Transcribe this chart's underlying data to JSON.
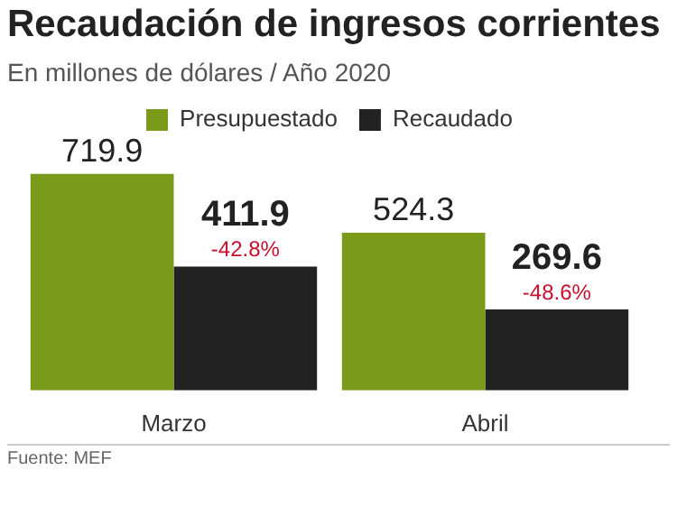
{
  "chart_data": {
    "type": "bar",
    "title": "Recaudación de ingresos corrientes",
    "subtitle": "En millones de dólares / Año 2020",
    "categories": [
      "Marzo",
      "Abril"
    ],
    "series": [
      {
        "name": "Presupuestado",
        "color": "#7a9a1a",
        "values": [
          719.9,
          524.3
        ]
      },
      {
        "name": "Recaudado",
        "color": "#222222",
        "values": [
          411.9,
          269.6
        ]
      }
    ],
    "tick_labels": "x",
    "grid": false,
    "legend": "top",
    "data_labels": true,
    "annotations": [
      {
        "text": "-42.8%",
        "x": "Marzo",
        "y": 411.9
      },
      {
        "text": "-48.6%",
        "x": "Abril",
        "y": 269.6
      },
      "Fuente: MEF"
    ]
  }
}
